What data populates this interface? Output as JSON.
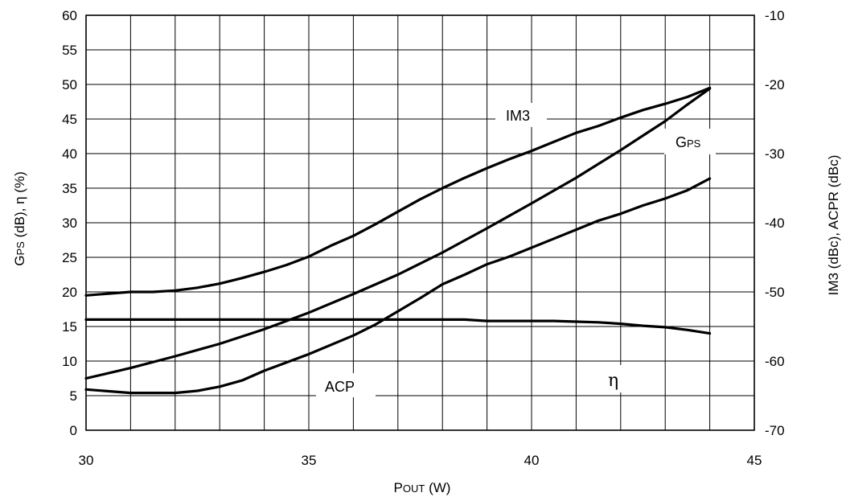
{
  "chart_data": {
    "type": "line",
    "xlabel": "POUT (W)",
    "ylabel_left": "GPS (dB), η (%)",
    "ylabel_right": "IM3 (dBc), ACPR (dBc)",
    "xlim": [
      30,
      45
    ],
    "ylim_left": [
      0,
      60
    ],
    "ylim_right": [
      -70,
      -10
    ],
    "x_ticks": [
      30,
      35,
      40,
      45
    ],
    "y_ticks_left": [
      0,
      5,
      10,
      15,
      20,
      25,
      30,
      35,
      40,
      45,
      50,
      55,
      60
    ],
    "y_ticks_right": [
      -70,
      -60,
      -50,
      -40,
      -30,
      -20,
      -10
    ],
    "grid": true,
    "series": [
      {
        "name": "IM3",
        "axis": "right",
        "x": [
          30,
          31,
          31.5,
          32,
          32.5,
          33,
          33.5,
          34,
          34.5,
          35,
          35.5,
          36,
          36.5,
          37,
          37.5,
          38,
          38.5,
          39,
          39.5,
          40,
          40.5,
          41,
          41.5,
          42,
          42.5,
          43,
          43.5,
          44
        ],
        "y": [
          -50.5,
          -50,
          -50,
          -49.8,
          -49.4,
          -48.8,
          -48,
          -47.1,
          -46.1,
          -44.9,
          -43.3,
          -41.9,
          -40.2,
          -38.4,
          -36.6,
          -35,
          -33.5,
          -32.1,
          -30.8,
          -29.6,
          -28.3,
          -27,
          -26,
          -24.8,
          -23.7,
          -22.8,
          -21.8,
          -20.5
        ]
      },
      {
        "name": "GPS",
        "axis": "left",
        "x": [
          30,
          31,
          32,
          33,
          34,
          35,
          36,
          37,
          38,
          39,
          40,
          41,
          41.5,
          42,
          42.5,
          43,
          43.5,
          44
        ],
        "y": [
          7.5,
          9,
          10.7,
          12.5,
          14.6,
          17,
          19.7,
          22.5,
          25.7,
          29.2,
          32.8,
          36.5,
          38.5,
          40.5,
          42.6,
          44.7,
          47.1,
          49.4
        ]
      },
      {
        "name": "ACP",
        "axis": "right",
        "x": [
          30,
          31,
          32,
          32.5,
          33,
          33.5,
          34,
          35,
          36,
          36.5,
          37,
          37.5,
          38,
          38.5,
          39,
          39.5,
          40,
          40.5,
          41,
          41.5,
          42,
          42.5,
          43,
          43.5,
          44
        ],
        "y": [
          -64.1,
          -64.6,
          -64.6,
          -64.3,
          -63.7,
          -62.8,
          -61.4,
          -59,
          -56.3,
          -54.7,
          -52.8,
          -50.9,
          -48.9,
          -47.5,
          -46,
          -44.9,
          -43.6,
          -42.3,
          -41,
          -39.7,
          -38.7,
          -37.5,
          -36.5,
          -35.3,
          -33.6
        ]
      },
      {
        "name": "η",
        "axis": "left",
        "x": [
          30,
          31,
          32,
          33,
          34,
          35,
          36,
          37,
          38,
          38.5,
          39,
          39.5,
          40,
          40.5,
          41,
          41.5,
          42,
          42.5,
          43,
          43.5,
          44
        ],
        "y": [
          16,
          16,
          16,
          16,
          16,
          16,
          16,
          16,
          16,
          16,
          15.8,
          15.8,
          15.8,
          15.8,
          15.7,
          15.6,
          15.4,
          15.1,
          14.9,
          14.5,
          14
        ]
      }
    ]
  }
}
